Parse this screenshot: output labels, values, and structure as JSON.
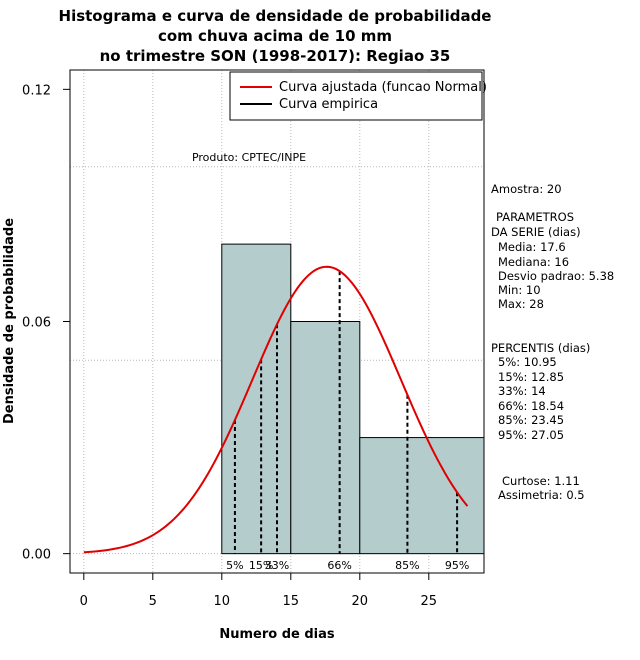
{
  "chart_data": {
    "type": "histogram",
    "title_lines": [
      "Histograma e curva de densidade de probabilidade",
      "com chuva acima de 10 mm",
      "no trimestre SON (1998-2017): Regiao 35"
    ],
    "xlabel": "Numero de dias",
    "ylabel": "Densidade de probabilidade",
    "xlim": [
      -1,
      29
    ],
    "ylim": [
      -0.005,
      0.125
    ],
    "x_ticks": [
      0,
      5,
      10,
      15,
      20,
      25
    ],
    "y_ticks": [
      0.0,
      0.06,
      0.12
    ],
    "y_tick_labels": [
      "0.00",
      "0.06",
      "0.12"
    ],
    "grid": true,
    "grid_x": [
      0,
      5,
      10,
      15,
      20,
      25
    ],
    "grid_y": [
      0.0,
      0.05,
      0.1
    ],
    "bins": [
      {
        "start": 10,
        "end": 15,
        "density": 0.08
      },
      {
        "start": 15,
        "end": 20,
        "density": 0.06
      },
      {
        "start": 20,
        "end": 29,
        "density": 0.03
      }
    ],
    "normal_fit": {
      "mean": 17.6,
      "sd": 5.38,
      "x_range": [
        0,
        27.8
      ]
    },
    "percentiles": [
      {
        "label": "5%",
        "value": 10.95
      },
      {
        "label": "15%",
        "value": 12.85
      },
      {
        "label": "33%",
        "value": 14
      },
      {
        "label": "66%",
        "value": 18.54
      },
      {
        "label": "85%",
        "value": 23.45
      },
      {
        "label": "95%",
        "value": 27.05
      }
    ],
    "legend": [
      {
        "label": "Curva ajustada (funcao Normal)",
        "color": "#e00000"
      },
      {
        "label": "Curva empirica",
        "color": "#000000"
      }
    ],
    "legend_position": "top-right",
    "credit": "Produto: CPTEC/INPE",
    "colors": {
      "bar_fill": "#b5cccc",
      "curve": "#e00000",
      "grid": "#b8b8b8"
    }
  },
  "side_panel": {
    "sample": "Amostra: 20",
    "params_header_1": "PARAMETROS",
    "params_header_2": "DA SERIE (dias)",
    "media": "Media: 17.6",
    "mediana": "Mediana: 16",
    "desvio": "Desvio padrao: 5.38",
    "min": "Min: 10",
    "max": "Max: 28",
    "percentis_header": "PERCENTIS (dias)",
    "p5": "5%: 10.95",
    "p15": "15%: 12.85",
    "p33": "33%: 14",
    "p66": "66%: 18.54",
    "p85": "85%: 23.45",
    "p95": "95%: 27.05",
    "curtose": "Curtose: 1.11",
    "assimetria": "Assimetria: 0.5"
  }
}
